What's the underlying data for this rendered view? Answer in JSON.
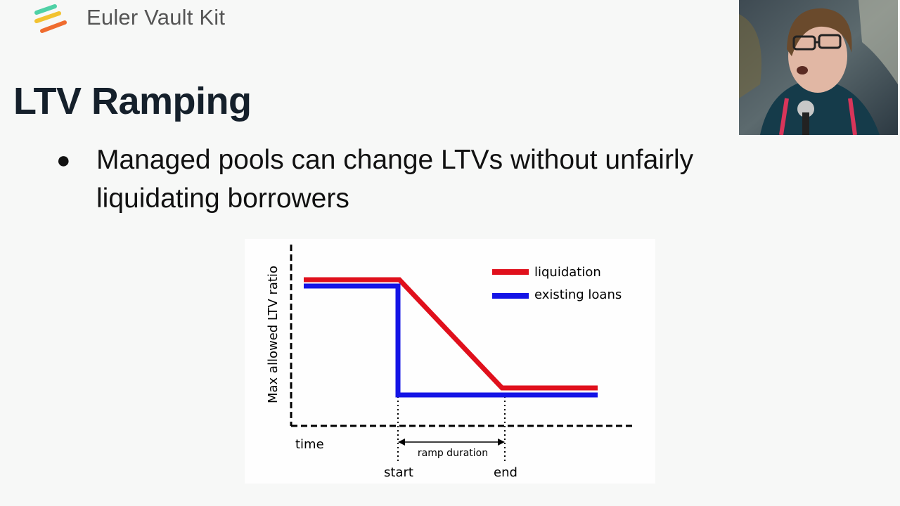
{
  "header": {
    "brand": "Euler Vault Kit"
  },
  "slide": {
    "title": "LTV Ramping",
    "bullet": "Managed pools can change LTVs without unfairly liquidating borrowers"
  },
  "diagram": {
    "ylabel": "Max allowed LTV ratio",
    "xlabel": "time",
    "legend": [
      {
        "label": "liquidation",
        "color": "#e0101c"
      },
      {
        "label": "existing loans",
        "color": "#1414e6"
      }
    ],
    "markers": {
      "start": "start",
      "end": "end"
    },
    "span_label": "ramp duration"
  },
  "video": {
    "subject": "presenter-webcam"
  }
}
